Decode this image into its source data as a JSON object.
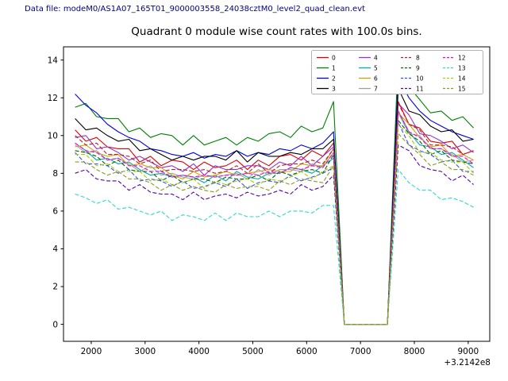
{
  "header": {
    "text": "Data file: modeM0/AS1A07_165T01_9000003558_24038cztM0_level2_quad_clean.evt",
    "color": "#00008b"
  },
  "chart_data": {
    "type": "line",
    "title": "Quadrant 0 module wise count rates with 100.0s bins.",
    "xlabel": "",
    "ylabel": "",
    "x_offset_label": "+3.2142e8",
    "legend_position": "upper right",
    "legend_ncols": 4,
    "grid": false,
    "xlim": [
      1485,
      9400
    ],
    "ylim": [
      -0.9,
      14.7
    ],
    "xticks": [
      2000,
      3000,
      4000,
      5000,
      6000,
      7000,
      8000,
      9000
    ],
    "yticks": [
      0,
      2,
      4,
      6,
      8,
      10,
      12,
      14
    ],
    "x": [
      1700,
      1900,
      2100,
      2300,
      2500,
      2700,
      2900,
      3100,
      3300,
      3500,
      3700,
      3900,
      4100,
      4300,
      4500,
      4700,
      4900,
      5100,
      5300,
      5500,
      5700,
      5900,
      6100,
      6300,
      6500,
      6700,
      6900,
      7100,
      7300,
      7500,
      7700,
      7900,
      8100,
      8300,
      8500,
      8700,
      8900,
      9100
    ],
    "series": [
      {
        "name": "0",
        "color": "#e00000",
        "dash": false,
        "values": [
          10.3,
          9.7,
          9.9,
          9.4,
          9.3,
          9.3,
          8.6,
          8.9,
          8.4,
          8.7,
          8.6,
          8.2,
          8.6,
          8.3,
          8.4,
          8.7,
          8.2,
          8.7,
          8.4,
          8.9,
          9.0,
          8.7,
          9.2,
          8.9,
          9.6,
          0,
          0,
          0,
          0,
          0,
          11.8,
          10.6,
          10.4,
          9.7,
          9.6,
          9.7,
          9.0,
          9.2
        ]
      },
      {
        "name": "1",
        "color": "#008000",
        "dash": false,
        "values": [
          11.5,
          11.7,
          11.0,
          10.9,
          10.9,
          10.2,
          10.4,
          9.9,
          10.1,
          10.0,
          9.5,
          10.0,
          9.5,
          9.7,
          9.9,
          9.5,
          9.9,
          9.7,
          10.1,
          10.2,
          9.9,
          10.5,
          10.2,
          10.4,
          11.8,
          0,
          0,
          0,
          0,
          0,
          14.3,
          12.6,
          11.9,
          11.2,
          11.3,
          10.8,
          11.0,
          10.4
        ]
      },
      {
        "name": "2",
        "color": "#0000e0",
        "dash": false,
        "values": [
          12.2,
          11.6,
          11.2,
          10.6,
          10.2,
          9.9,
          9.7,
          9.3,
          9.2,
          9.0,
          8.9,
          9.1,
          8.8,
          9.0,
          8.9,
          9.2,
          8.9,
          9.1,
          9.0,
          9.3,
          9.2,
          9.5,
          9.3,
          9.6,
          10.2,
          0,
          0,
          0,
          0,
          0,
          13.1,
          12.0,
          11.3,
          10.8,
          10.5,
          10.2,
          10.0,
          9.8
        ]
      },
      {
        "name": "3",
        "color": "#000000",
        "dash": false,
        "values": [
          10.9,
          10.3,
          10.4,
          10.0,
          9.7,
          9.8,
          9.2,
          9.3,
          9.0,
          8.7,
          8.9,
          8.7,
          8.9,
          8.9,
          8.7,
          9.2,
          8.6,
          9.1,
          8.9,
          8.9,
          9.1,
          9.0,
          9.3,
          9.3,
          9.8,
          0,
          0,
          0,
          0,
          0,
          12.5,
          11.3,
          11.1,
          10.5,
          10.2,
          10.3,
          9.7,
          9.8
        ]
      },
      {
        "name": "4",
        "color": "#9932cc",
        "dash": false,
        "values": [
          9.9,
          10.0,
          9.3,
          9.4,
          9.1,
          8.7,
          8.9,
          8.6,
          8.3,
          8.4,
          8.1,
          8.5,
          7.9,
          8.4,
          8.2,
          8.2,
          8.4,
          8.4,
          8.2,
          8.6,
          8.4,
          8.9,
          8.4,
          8.9,
          9.4,
          0,
          0,
          0,
          0,
          0,
          11.7,
          11.1,
          10.1,
          10.0,
          9.7,
          9.3,
          9.5,
          9.1
        ]
      },
      {
        "name": "5",
        "color": "#00a8a8",
        "dash": false,
        "values": [
          9.6,
          9.2,
          8.7,
          8.8,
          8.5,
          8.6,
          8.2,
          7.9,
          8.0,
          7.8,
          7.9,
          7.8,
          7.5,
          7.9,
          7.6,
          8.1,
          7.8,
          7.7,
          8.0,
          8.0,
          8.3,
          8.2,
          8.0,
          8.4,
          8.8,
          0,
          0,
          0,
          0,
          0,
          11.3,
          10.2,
          9.5,
          9.4,
          9.0,
          9.1,
          8.7,
          8.3
        ]
      },
      {
        "name": "6",
        "color": "#d4a000",
        "dash": false,
        "values": [
          9.4,
          9.5,
          9.1,
          8.9,
          9.0,
          8.4,
          8.5,
          8.3,
          8.3,
          7.9,
          7.7,
          8.1,
          7.8,
          7.9,
          8.1,
          7.9,
          8.0,
          8.1,
          8.2,
          8.1,
          8.1,
          8.5,
          8.4,
          8.4,
          9.3,
          0,
          0,
          0,
          0,
          0,
          11.2,
          10.6,
          9.9,
          9.4,
          9.5,
          8.9,
          9.0,
          8.7
        ]
      },
      {
        "name": "7",
        "color": "#a0a0a0",
        "dash": false,
        "values": [
          9.5,
          9.1,
          9.2,
          8.7,
          8.8,
          8.5,
          8.1,
          8.4,
          7.9,
          8.0,
          7.8,
          7.7,
          7.9,
          7.8,
          7.9,
          8.0,
          7.7,
          8.2,
          7.9,
          8.2,
          8.2,
          8.1,
          8.5,
          8.3,
          9.1,
          0,
          0,
          0,
          0,
          0,
          11.2,
          10.1,
          10.0,
          9.3,
          9.3,
          9.0,
          8.6,
          8.7
        ]
      },
      {
        "name": "8",
        "color": "#b22222",
        "dash": true,
        "values": [
          10.0,
          9.5,
          9.6,
          9.0,
          9.0,
          8.9,
          8.5,
          8.7,
          8.1,
          8.2,
          8.2,
          8.1,
          8.2,
          8.0,
          8.1,
          8.4,
          8.0,
          8.5,
          8.0,
          8.4,
          8.5,
          8.5,
          8.7,
          8.5,
          9.3,
          0,
          0,
          0,
          0,
          0,
          11.7,
          10.6,
          10.3,
          9.5,
          9.5,
          9.4,
          9.0,
          9.2
        ]
      },
      {
        "name": "9",
        "color": "#006400",
        "dash": true,
        "values": [
          9.2,
          9.1,
          8.9,
          8.4,
          8.7,
          8.2,
          8.1,
          8.1,
          7.6,
          7.9,
          7.5,
          7.7,
          7.7,
          7.5,
          7.8,
          7.7,
          7.7,
          7.9,
          7.6,
          8.1,
          7.9,
          8.1,
          8.2,
          8.0,
          9.0,
          0,
          0,
          0,
          0,
          0,
          10.8,
          10.1,
          9.7,
          9.0,
          9.2,
          8.7,
          8.6,
          8.5
        ]
      },
      {
        "name": "10",
        "color": "#3050ff",
        "dash": true,
        "values": [
          9.1,
          8.5,
          8.5,
          8.4,
          8.0,
          8.2,
          7.6,
          7.7,
          7.6,
          7.3,
          7.6,
          7.2,
          7.3,
          7.5,
          7.3,
          7.7,
          7.2,
          7.5,
          7.6,
          7.5,
          7.9,
          7.6,
          7.8,
          8.0,
          8.3,
          0,
          0,
          0,
          0,
          0,
          10.7,
          9.5,
          9.2,
          9.0,
          8.6,
          8.7,
          8.1,
          8.1
        ]
      },
      {
        "name": "11",
        "color": "#5a00a0",
        "dash": true,
        "values": [
          8.0,
          8.2,
          7.7,
          7.6,
          7.6,
          7.1,
          7.4,
          7.0,
          6.9,
          6.9,
          6.6,
          7.0,
          6.6,
          6.8,
          6.9,
          6.7,
          7.0,
          6.8,
          6.9,
          7.1,
          6.9,
          7.4,
          7.1,
          7.3,
          7.9,
          0,
          0,
          0,
          0,
          0,
          9.5,
          9.2,
          8.4,
          8.2,
          8.1,
          7.6,
          7.9,
          7.4
        ]
      },
      {
        "name": "12",
        "color": "#e800e8",
        "dash": true,
        "values": [
          9.6,
          9.2,
          9.1,
          8.7,
          8.8,
          8.4,
          8.4,
          8.1,
          8.1,
          7.8,
          7.9,
          7.8,
          7.9,
          7.8,
          7.9,
          7.9,
          8.0,
          7.9,
          8.1,
          8.0,
          8.3,
          8.2,
          8.4,
          8.3,
          9.1,
          0,
          0,
          0,
          0,
          0,
          11.3,
          10.2,
          9.9,
          9.3,
          9.3,
          8.9,
          8.9,
          8.5
        ]
      },
      {
        "name": "13",
        "color": "#30d5d5",
        "dash": true,
        "values": [
          6.9,
          6.7,
          6.4,
          6.6,
          6.1,
          6.2,
          6.0,
          5.8,
          6.0,
          5.5,
          5.8,
          5.7,
          5.5,
          5.9,
          5.5,
          5.9,
          5.7,
          5.7,
          6.0,
          5.7,
          6.0,
          6.0,
          5.9,
          6.3,
          6.3,
          0,
          0,
          0,
          0,
          0,
          8.2,
          7.5,
          7.1,
          7.1,
          6.6,
          6.7,
          6.5,
          6.2
        ]
      },
      {
        "name": "14",
        "color": "#aacc00",
        "dash": true,
        "values": [
          9.0,
          9.0,
          8.4,
          8.5,
          8.1,
          8.1,
          8.1,
          7.6,
          7.7,
          7.4,
          7.5,
          7.7,
          7.2,
          7.6,
          7.4,
          7.6,
          7.7,
          7.4,
          7.7,
          7.6,
          7.8,
          8.1,
          7.7,
          8.1,
          8.4,
          0,
          0,
          0,
          0,
          0,
          10.6,
          10.0,
          9.1,
          9.1,
          8.7,
          8.6,
          8.6,
          8.0
        ]
      },
      {
        "name": "15",
        "color": "#8a9a20",
        "dash": true,
        "values": [
          8.6,
          8.6,
          8.2,
          7.9,
          8.1,
          7.7,
          7.7,
          7.5,
          7.1,
          7.4,
          7.1,
          7.3,
          7.1,
          7.0,
          7.4,
          7.2,
          7.3,
          7.3,
          7.1,
          7.6,
          7.4,
          7.7,
          7.6,
          7.5,
          8.4,
          0,
          0,
          0,
          0,
          0,
          10.1,
          9.5,
          9.0,
          8.4,
          8.6,
          8.2,
          8.2,
          7.9
        ]
      }
    ]
  }
}
